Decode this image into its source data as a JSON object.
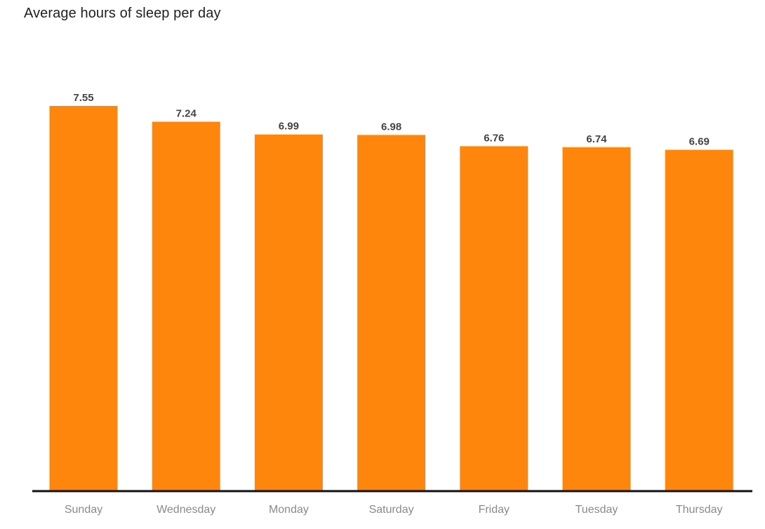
{
  "title": "Average hours of sleep per day",
  "colors": {
    "bar": "#FF860D",
    "axis": "#111111",
    "data_label": "#444444",
    "tick_label": "#8a8a8a"
  },
  "chart_data": {
    "type": "bar",
    "title": "Average hours of sleep per day",
    "xlabel": "",
    "ylabel": "",
    "categories": [
      "Sunday",
      "Wednesday",
      "Monday",
      "Saturday",
      "Friday",
      "Tuesday",
      "Thursday"
    ],
    "values": [
      7.55,
      7.24,
      6.99,
      6.98,
      6.76,
      6.74,
      6.69
    ],
    "data_labels": [
      "7.55",
      "7.24",
      "6.99",
      "6.98",
      "6.76",
      "6.74",
      "6.69"
    ],
    "ylim": [
      0,
      7.55
    ],
    "grid": false,
    "legend": "none",
    "y_axis_visible": false
  }
}
